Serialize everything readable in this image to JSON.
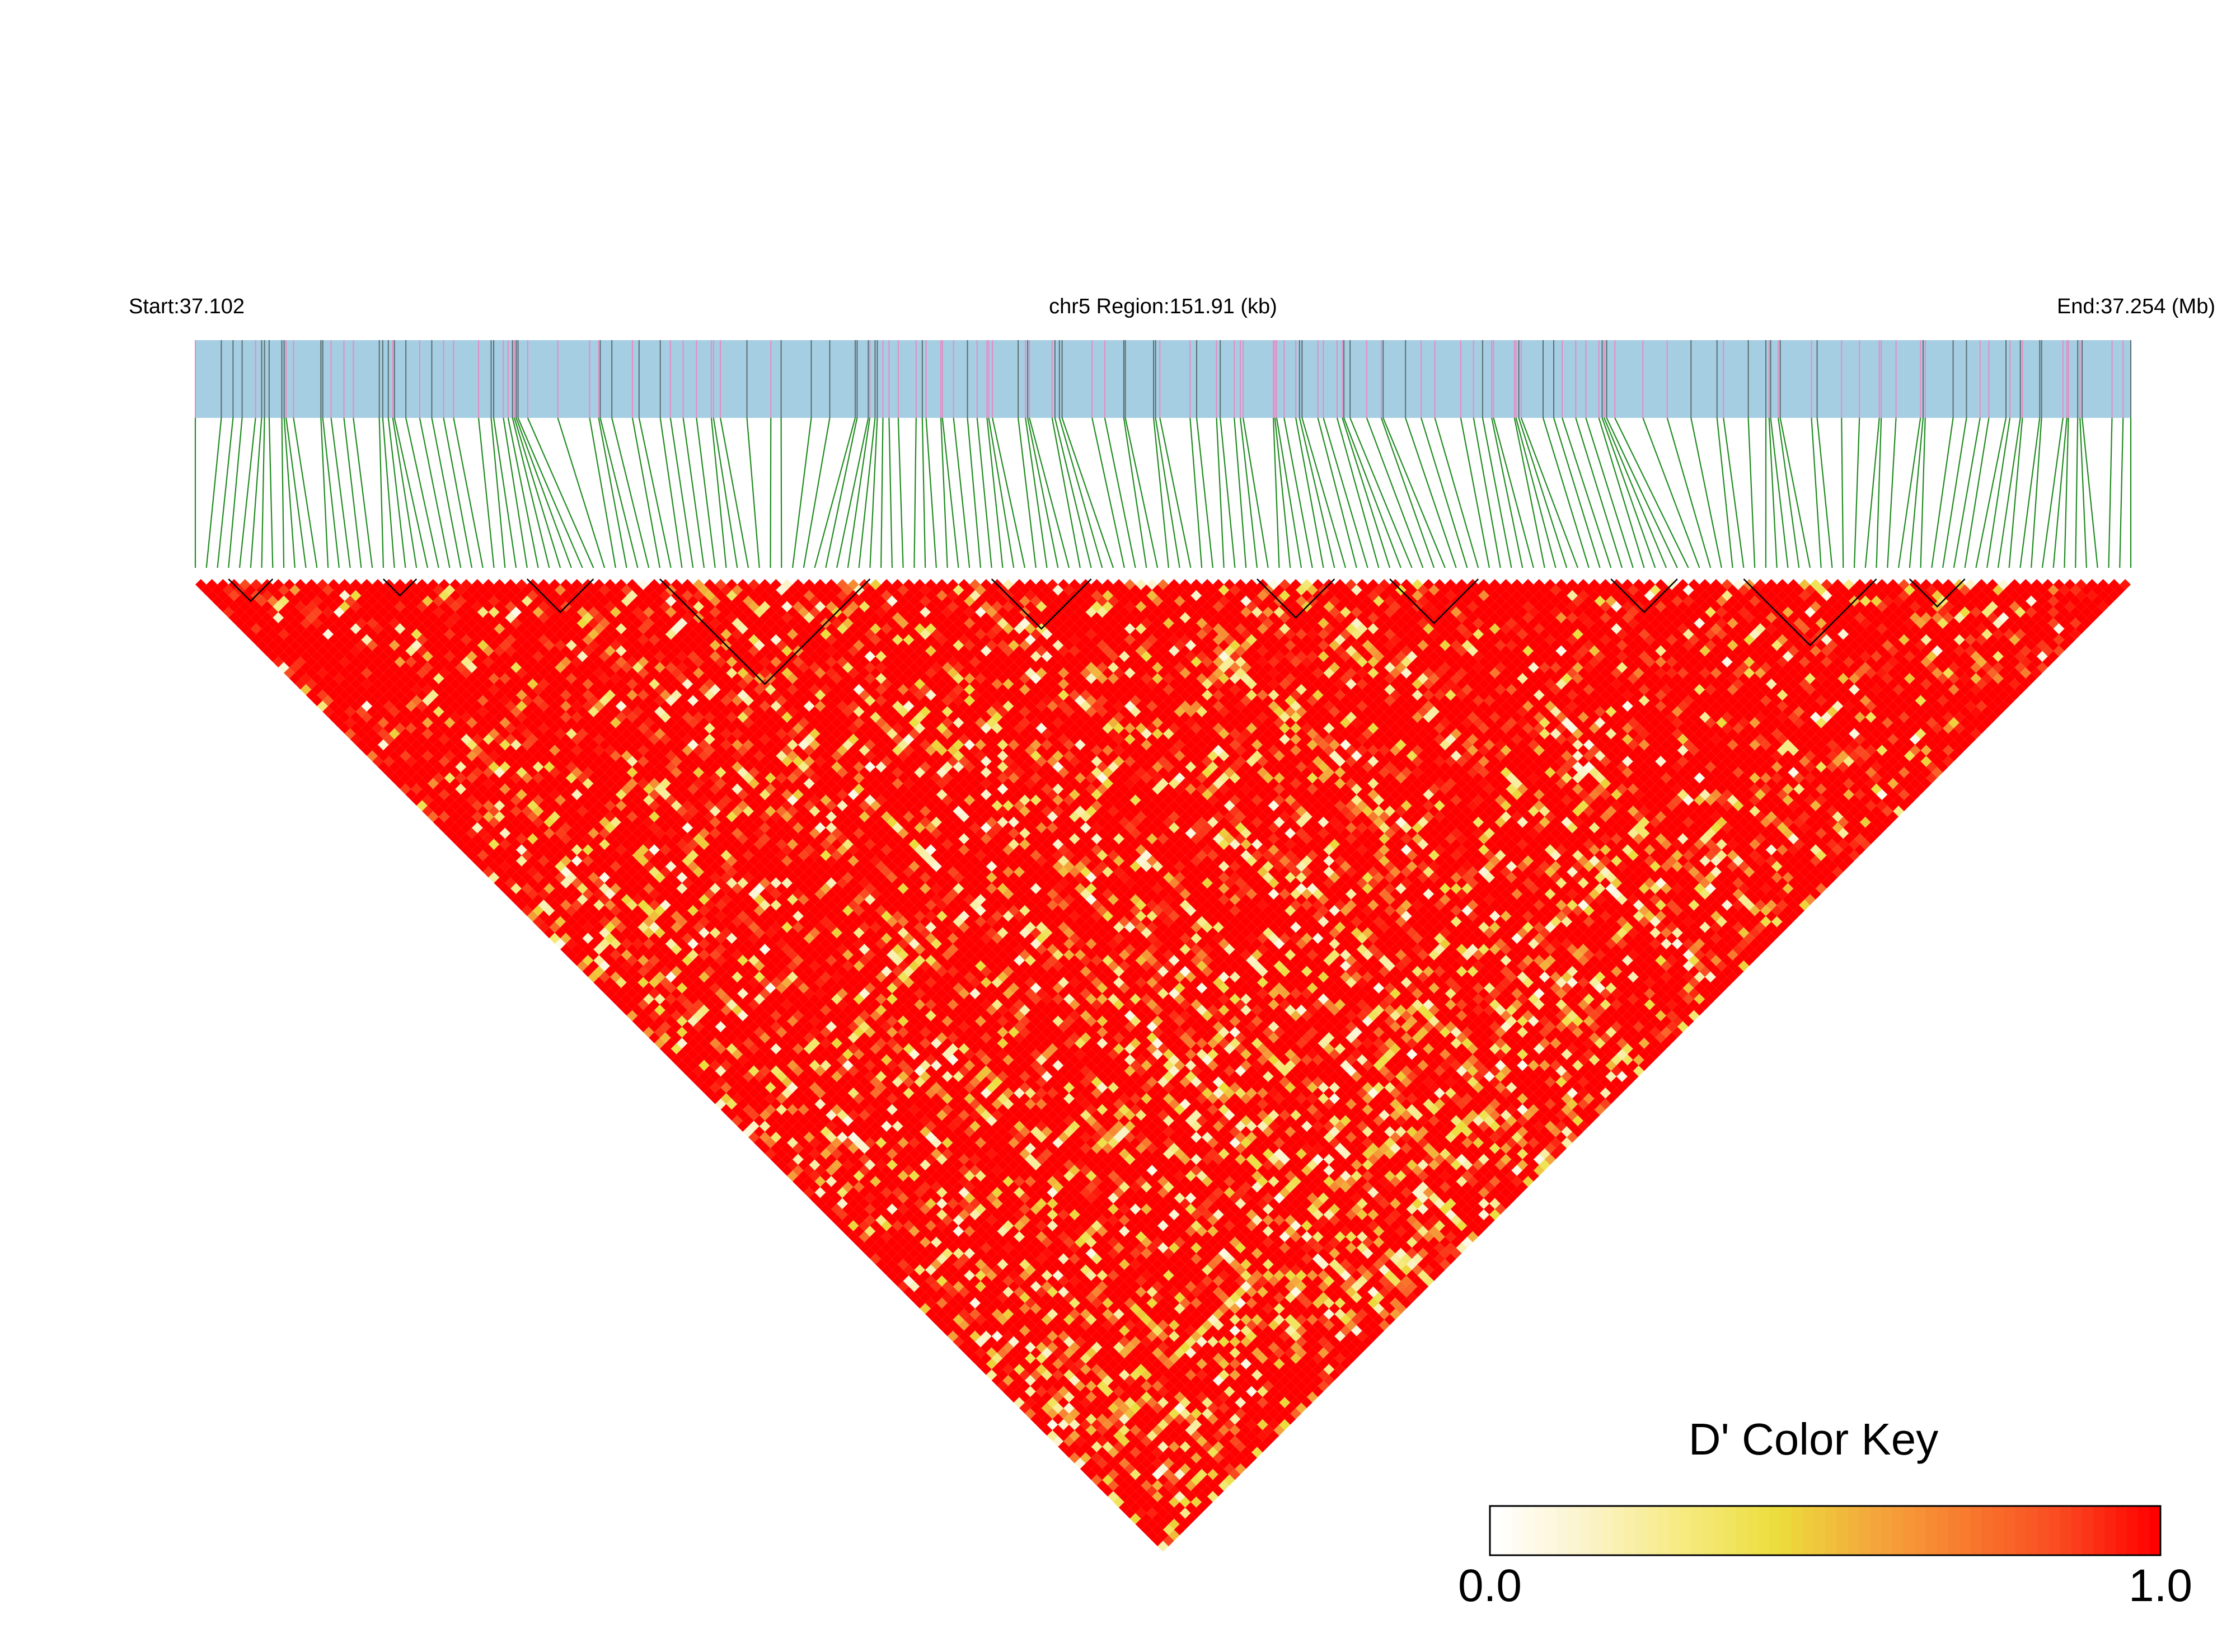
{
  "chart_data": {
    "type": "heatmap",
    "title": "",
    "header": {
      "start_label": "Start:37.102",
      "region_label": "chr5 Region:151.91 (kb)",
      "end_label": "End:37.254 (Mb)"
    },
    "chromosome": "chr5",
    "region_kb": 151.91,
    "start_mb": 37.102,
    "end_mb": 37.254,
    "snp_count": 176,
    "metric": "D'",
    "matrix_shape": "lower-triangle (pairwise LD between all SNPs)",
    "blocks_snp_index_ranges": [
      [
        3,
        7
      ],
      [
        17,
        20
      ],
      [
        30,
        36
      ],
      [
        42,
        61
      ],
      [
        72,
        81
      ],
      [
        96,
        103
      ],
      [
        108,
        116
      ],
      [
        128,
        134
      ],
      [
        140,
        152
      ],
      [
        155,
        160
      ]
    ],
    "colors": {
      "track_fill": "#a6cee3",
      "snp_tick_pink": "#e78ac3",
      "snp_tick_gray": "#5a6e6e",
      "connector": "#228b22",
      "matrix_high": "#ff0000",
      "block_outline": "#000000"
    },
    "legend": {
      "title": "D' Color Key",
      "min_label": "0.0",
      "max_label": "1.0",
      "min": 0.0,
      "max": 1.0,
      "gradient": [
        "#ffffff",
        "#fbf3c8",
        "#f6ea80",
        "#ecdd3c",
        "#f4a83c",
        "#f87a2e",
        "#fa4a20",
        "#ff0000"
      ]
    }
  }
}
